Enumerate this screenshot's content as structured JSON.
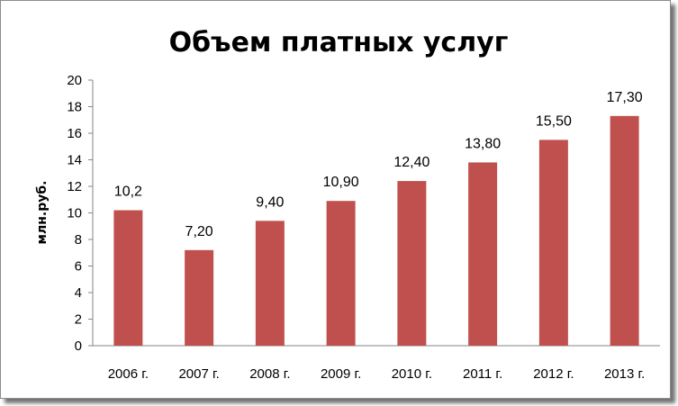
{
  "chart_data": {
    "type": "bar",
    "title": "Объем платных услуг",
    "ylabel": "млн.руб.",
    "xlabel": "",
    "categories": [
      "2006 г.",
      "2007 г.",
      "2008 г.",
      "2009 г.",
      "2010 г.",
      "2011 г.",
      "2012 г.",
      "2013 г."
    ],
    "values": [
      10.2,
      7.2,
      9.4,
      10.9,
      12.4,
      13.8,
      15.5,
      17.3
    ],
    "data_labels": [
      "10,2",
      "7,20",
      "9,40",
      "10,90",
      "12,40",
      "13,80",
      "15,50",
      "17,30"
    ],
    "ylim": [
      0,
      20
    ],
    "yticks": [
      "0",
      "2",
      "4",
      "6",
      "8",
      "10",
      "12",
      "14",
      "16",
      "18",
      "20"
    ],
    "grid": false,
    "legend": "none",
    "bar_color": "#c0504d"
  }
}
